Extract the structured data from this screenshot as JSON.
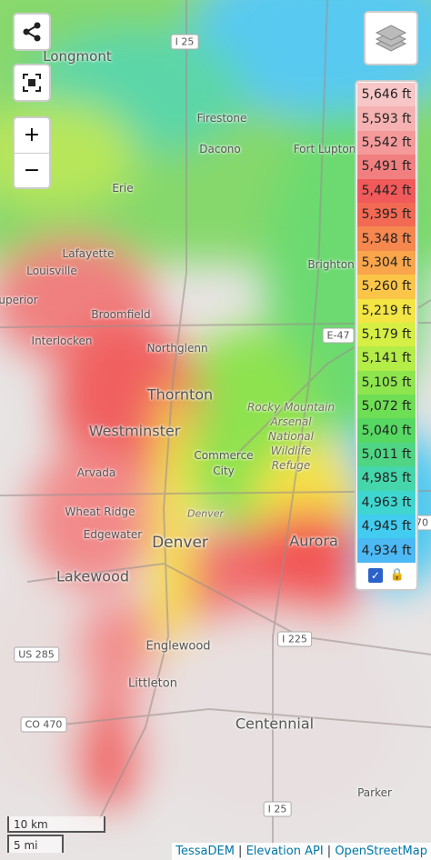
{
  "map": {
    "places": [
      "Longmont",
      "Firestone",
      "Dacono",
      "Fort Lupton",
      "Erie",
      "Lafayette",
      "Louisville",
      "Brighton",
      "uperior",
      "Broomfield",
      "Interlocken",
      "Northglenn",
      "Thornton",
      "Westminster",
      "Arvada",
      "Wheat Ridge",
      "Edgewater",
      "Denver",
      "Aurora",
      "Lakewood",
      "Englewood",
      "Littleton",
      "Centennial",
      "Parker",
      "Commerce",
      "City"
    ],
    "refuge": [
      "Rocky Mountain",
      "Arsenal",
      "National",
      "Wildlife",
      "Refuge",
      "Denver"
    ],
    "shields": [
      "I 25",
      "E-47",
      "US 285",
      "I 225",
      "CO 470",
      "I 25",
      "70"
    ]
  },
  "controls": {
    "zoom_in": "+",
    "zoom_out": "−",
    "lock": "🔒",
    "check": "✓"
  },
  "legend": {
    "entries": [
      {
        "label": "5,646 ft",
        "color": "#f7c6c6"
      },
      {
        "label": "5,593 ft",
        "color": "#f6b2b2"
      },
      {
        "label": "5,542 ft",
        "color": "#f49a9a"
      },
      {
        "label": "5,491 ft",
        "color": "#f27f7f"
      },
      {
        "label": "5,442 ft",
        "color": "#f05a5a"
      },
      {
        "label": "5,395 ft",
        "color": "#f26a54"
      },
      {
        "label": "5,348 ft",
        "color": "#f5874f"
      },
      {
        "label": "5,304 ft",
        "color": "#f8a54b"
      },
      {
        "label": "5,260 ft",
        "color": "#fbc548"
      },
      {
        "label": "5,219 ft",
        "color": "#f3e544"
      },
      {
        "label": "5,179 ft",
        "color": "#d6ef44"
      },
      {
        "label": "5,141 ft",
        "color": "#b4ec48"
      },
      {
        "label": "5,105 ft",
        "color": "#8ee54e"
      },
      {
        "label": "5,072 ft",
        "color": "#6ede55"
      },
      {
        "label": "5,040 ft",
        "color": "#56d862"
      },
      {
        "label": "5,011 ft",
        "color": "#4fd583"
      },
      {
        "label": "4,985 ft",
        "color": "#46d6ab"
      },
      {
        "label": "4,963 ft",
        "color": "#40d6d0"
      },
      {
        "label": "4,945 ft",
        "color": "#42ccf0"
      },
      {
        "label": "4,934 ft",
        "color": "#4cb9f5"
      }
    ]
  },
  "scale": {
    "metric": "10 km",
    "imperial": "5 mi"
  },
  "attribution": [
    "TessaDEM",
    "Elevation API",
    "OpenStreetMap"
  ]
}
